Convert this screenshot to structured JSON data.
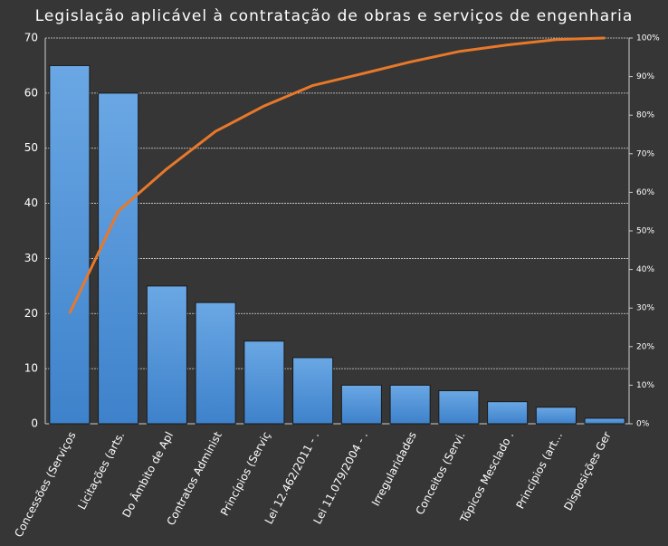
{
  "chart_data": {
    "type": "bar",
    "title": "Legislação aplicável à contratação de obras e serviços de engenharia",
    "categories": [
      "Concessões (Serviços",
      "Licitações (arts.",
      "Do Âmbito de Apl",
      "Contratos Administ",
      "Princípios (Serviç",
      "Lei 12.462/2011 - .",
      "Lei 11.079/2004 - .",
      "Irregularidades",
      "Conceitos (Servi.",
      "Tópicos Mesclado .",
      "Princípios (art...",
      "Disposições Ger"
    ],
    "series": [
      {
        "type": "bar",
        "color": "#4f93d8",
        "values": [
          65,
          60,
          25,
          22,
          15,
          12,
          7,
          7,
          6,
          4,
          3,
          1
        ]
      },
      {
        "type": "line",
        "axis": "y2",
        "color": "#e8782a",
        "values": [
          28.6,
          55.1,
          66.1,
          75.8,
          82.4,
          87.7,
          90.7,
          93.8,
          96.5,
          98.2,
          99.6,
          100
        ]
      }
    ],
    "ylim": [
      0,
      70
    ],
    "yticks": [
      0,
      10,
      20,
      30,
      40,
      50,
      60,
      70
    ],
    "y2lim": [
      0,
      100
    ],
    "y2ticks": [
      {
        "value": 0,
        "label": "0%"
      },
      {
        "value": 10,
        "label": "10%"
      },
      {
        "value": 20,
        "label": "20%"
      },
      {
        "value": 30,
        "label": "30%"
      },
      {
        "value": 40,
        "label": "40%"
      },
      {
        "value": 50,
        "label": "50%"
      },
      {
        "value": 60,
        "label": "60%"
      },
      {
        "value": 70,
        "label": "70%"
      },
      {
        "value": 80,
        "label": "80%"
      },
      {
        "value": 90,
        "label": "90%"
      },
      {
        "value": 100,
        "label": "100%"
      }
    ],
    "grid": true
  }
}
